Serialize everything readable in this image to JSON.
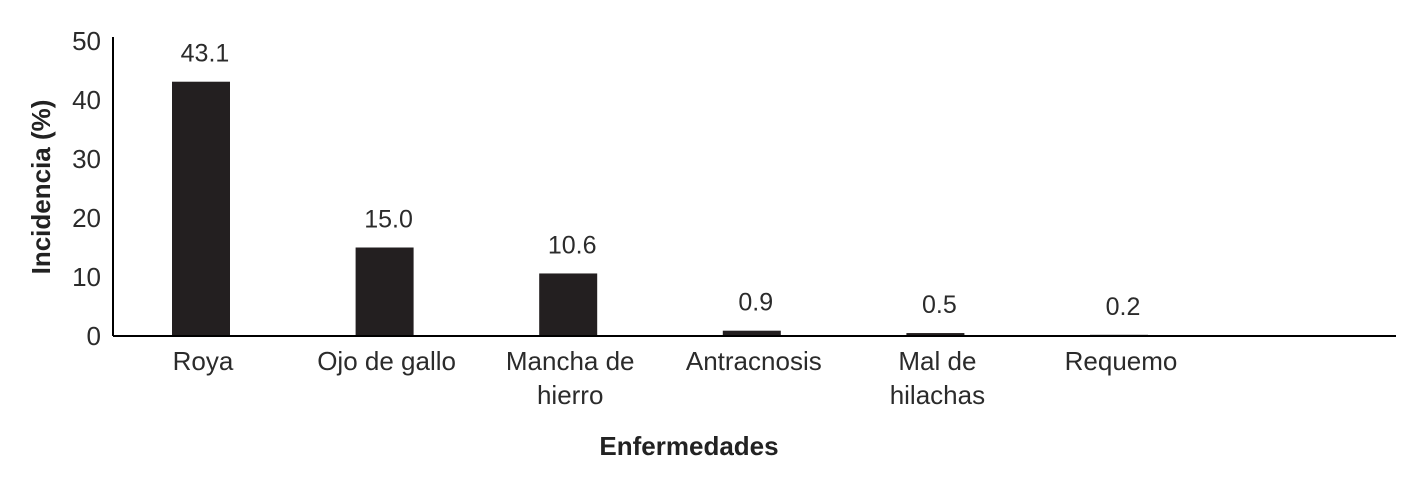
{
  "chart_data": {
    "type": "bar",
    "categories": [
      "Roya",
      "Ojo de gallo",
      "Mancha de hierro",
      "Antracnosis",
      "Mal de hilachas",
      "Requemo"
    ],
    "category_lines": [
      [
        "Roya"
      ],
      [
        "Ojo de gallo"
      ],
      [
        "Mancha de",
        "hierro"
      ],
      [
        "Antracnosis"
      ],
      [
        "Mal de",
        "hilachas"
      ],
      [
        "Requemo"
      ]
    ],
    "values": [
      43.1,
      15.0,
      10.6,
      0.9,
      0.5,
      0.2
    ],
    "data_labels": [
      "43.1",
      "15.0",
      "10.6",
      "0.9",
      "0.5",
      "0.2"
    ],
    "xlabel": "Enfermedades",
    "ylabel": "Incidencia (%)",
    "ylim": [
      0,
      50
    ],
    "yticks": [
      0,
      10,
      20,
      30,
      40,
      50
    ],
    "grid": false,
    "colors": {
      "bar": "#231f20",
      "axis": "#000000",
      "text": "#2b2b2b"
    }
  }
}
